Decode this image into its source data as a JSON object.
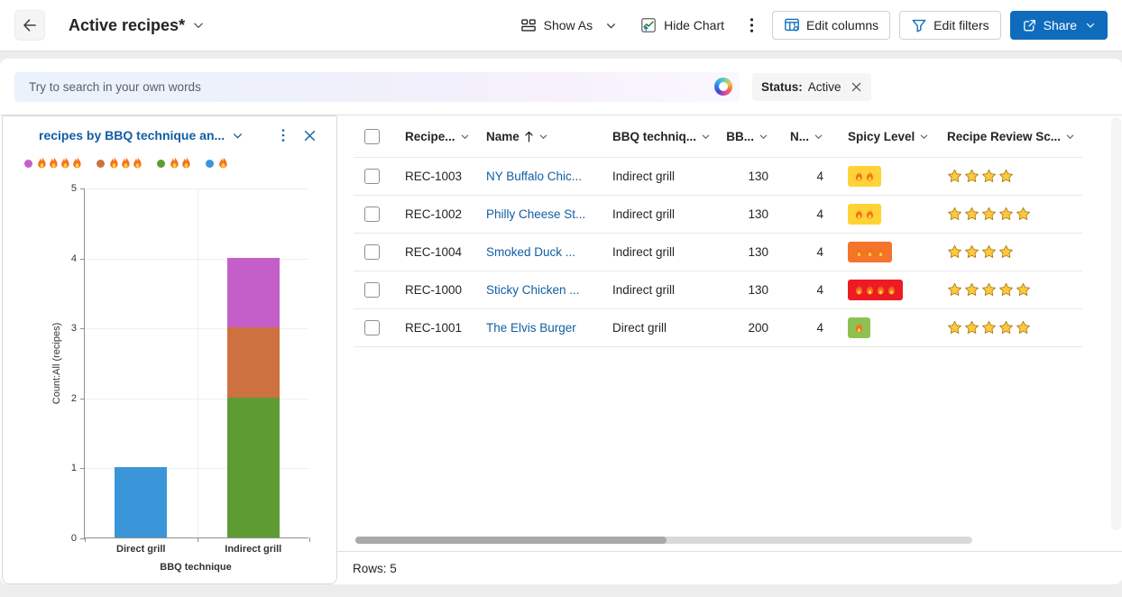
{
  "topbar": {
    "title": "Active recipes*",
    "show_as": "Show As",
    "hide_chart": "Hide Chart",
    "edit_columns": "Edit columns",
    "edit_filters": "Edit filters",
    "share": "Share"
  },
  "search": {
    "placeholder": "Try to search in your own words"
  },
  "filter_chip": {
    "label": "Status:",
    "value": "Active"
  },
  "chart": {
    "title": "recipes by BBQ technique an...",
    "legend": [
      {
        "flames": 4,
        "color": "#C45FC9"
      },
      {
        "flames": 3,
        "color": "#CE7140"
      },
      {
        "flames": 2,
        "color": "#5F9B33"
      },
      {
        "flames": 1,
        "color": "#3B96D9"
      }
    ]
  },
  "chart_data": {
    "type": "bar",
    "stacked": true,
    "title": "recipes by BBQ technique an...",
    "categories": [
      "Direct grill",
      "Indirect grill"
    ],
    "series": [
      {
        "name": "Spicy level 1 flame",
        "color": "#3B96D9",
        "values": [
          1,
          0
        ]
      },
      {
        "name": "Spicy level 2 flames",
        "color": "#5F9B33",
        "values": [
          0,
          2
        ]
      },
      {
        "name": "Spicy level 3 flames",
        "color": "#CE7140",
        "values": [
          0,
          1
        ]
      },
      {
        "name": "Spicy level 4 flames",
        "color": "#C45FC9",
        "values": [
          0,
          1
        ]
      }
    ],
    "xlabel": "BBQ technique",
    "ylabel": "Count:All (recipes)",
    "ylim": [
      0,
      5
    ],
    "yticks": [
      0,
      1,
      2,
      3,
      4,
      5
    ],
    "grid": true,
    "legend_position": "top"
  },
  "grid": {
    "columns": [
      {
        "key": "id",
        "label": "Recipe..."
      },
      {
        "key": "name",
        "label": "Name",
        "sorted": "asc"
      },
      {
        "key": "tech",
        "label": "BBQ techniq..."
      },
      {
        "key": "temp",
        "label": "BB..."
      },
      {
        "key": "n",
        "label": "N..."
      },
      {
        "key": "spicy",
        "label": "Spicy Level"
      },
      {
        "key": "score",
        "label": "Recipe Review Sc..."
      }
    ],
    "rows": [
      {
        "id": "REC-1003",
        "name": "NY Buffalo Chic...",
        "tech": "Indirect grill",
        "temp": "130",
        "n": "4",
        "spicy_flames": 2,
        "spicy_color": "#FFD335",
        "stars": 4
      },
      {
        "id": "REC-1002",
        "name": "Philly Cheese St...",
        "tech": "Indirect grill",
        "temp": "130",
        "n": "4",
        "spicy_flames": 2,
        "spicy_color": "#FFD335",
        "stars": 5
      },
      {
        "id": "REC-1004",
        "name": "Smoked Duck ...",
        "tech": "Indirect grill",
        "temp": "130",
        "n": "4",
        "spicy_flames": 3,
        "spicy_color": "#F4742B",
        "stars": 4
      },
      {
        "id": "REC-1000",
        "name": "Sticky Chicken ...",
        "tech": "Indirect grill",
        "temp": "130",
        "n": "4",
        "spicy_flames": 4,
        "spicy_color": "#ED1B23",
        "stars": 5
      },
      {
        "id": "REC-1001",
        "name": "The Elvis Burger",
        "tech": "Direct grill",
        "temp": "200",
        "n": "4",
        "spicy_flames": 1,
        "spicy_color": "#8FC152",
        "stars": 5
      }
    ],
    "row_count_label": "Rows: 5"
  },
  "colors": {
    "accent": "#0F6CBD",
    "link": "#115EA3"
  }
}
